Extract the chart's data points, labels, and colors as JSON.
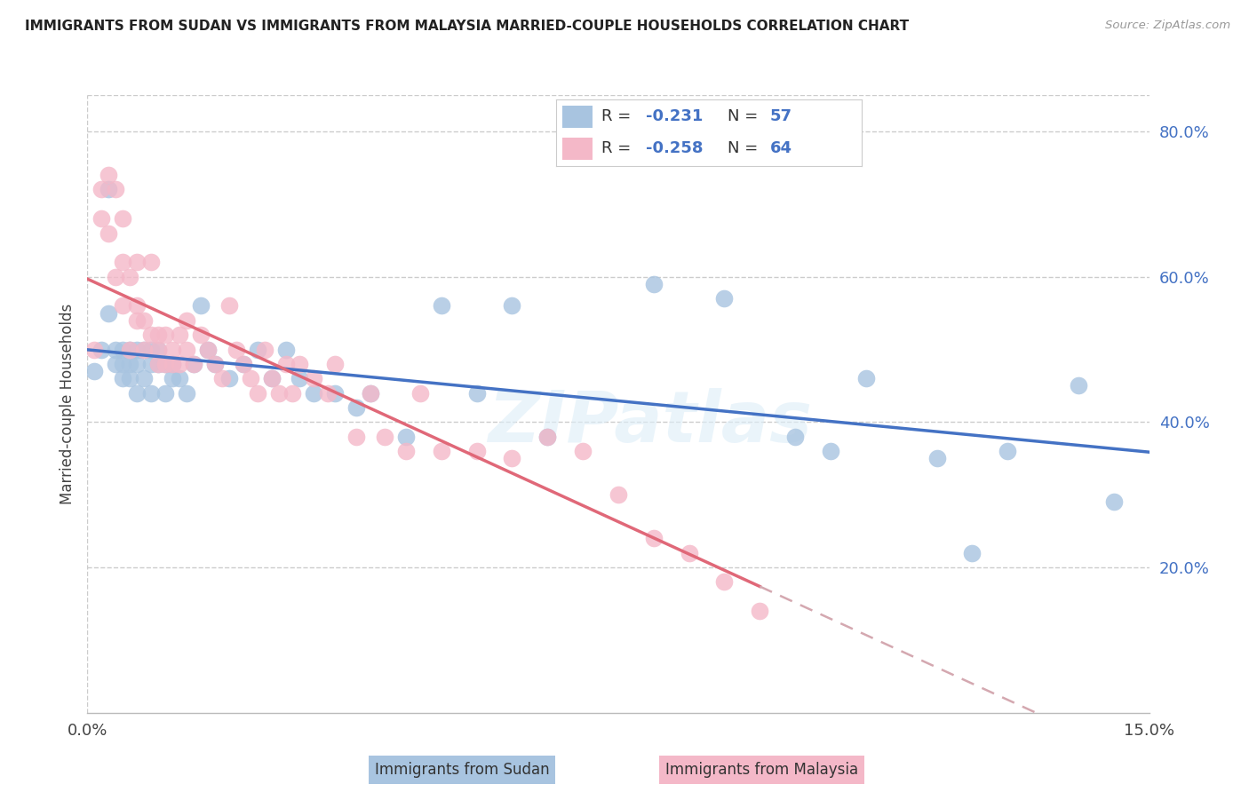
{
  "title": "IMMIGRANTS FROM SUDAN VS IMMIGRANTS FROM MALAYSIA MARRIED-COUPLE HOUSEHOLDS CORRELATION CHART",
  "source": "Source: ZipAtlas.com",
  "ylabel": "Married-couple Households",
  "xlim": [
    0.0,
    0.15
  ],
  "ylim": [
    0.0,
    0.85
  ],
  "ytick_labels": [
    "20.0%",
    "40.0%",
    "60.0%",
    "80.0%"
  ],
  "ytick_positions": [
    0.2,
    0.4,
    0.6,
    0.8
  ],
  "legend_r_sudan": "-0.231",
  "legend_n_sudan": "57",
  "legend_r_malaysia": "-0.258",
  "legend_n_malaysia": "64",
  "color_sudan": "#a8c4e0",
  "color_malaysia": "#f4b8c8",
  "line_color_sudan": "#4472c4",
  "line_color_malaysia": "#e06878",
  "line_color_malaysia_dash": "#d4a8b0",
  "background_color": "#ffffff",
  "grid_color": "#cccccc",
  "watermark": "ZIPatlas",
  "sudan_x": [
    0.001,
    0.002,
    0.003,
    0.003,
    0.004,
    0.004,
    0.005,
    0.005,
    0.005,
    0.006,
    0.006,
    0.006,
    0.007,
    0.007,
    0.007,
    0.008,
    0.008,
    0.009,
    0.009,
    0.009,
    0.01,
    0.01,
    0.011,
    0.011,
    0.012,
    0.012,
    0.013,
    0.014,
    0.015,
    0.016,
    0.017,
    0.018,
    0.02,
    0.022,
    0.024,
    0.026,
    0.028,
    0.03,
    0.032,
    0.035,
    0.038,
    0.04,
    0.045,
    0.05,
    0.055,
    0.06,
    0.065,
    0.08,
    0.09,
    0.1,
    0.105,
    0.11,
    0.12,
    0.125,
    0.13,
    0.14,
    0.145
  ],
  "sudan_y": [
    0.47,
    0.5,
    0.55,
    0.72,
    0.5,
    0.48,
    0.5,
    0.46,
    0.48,
    0.5,
    0.48,
    0.46,
    0.5,
    0.48,
    0.44,
    0.5,
    0.46,
    0.48,
    0.44,
    0.5,
    0.48,
    0.5,
    0.48,
    0.44,
    0.48,
    0.46,
    0.46,
    0.44,
    0.48,
    0.56,
    0.5,
    0.48,
    0.46,
    0.48,
    0.5,
    0.46,
    0.5,
    0.46,
    0.44,
    0.44,
    0.42,
    0.44,
    0.38,
    0.56,
    0.44,
    0.56,
    0.38,
    0.59,
    0.57,
    0.38,
    0.36,
    0.46,
    0.35,
    0.22,
    0.36,
    0.45,
    0.29
  ],
  "malaysia_x": [
    0.001,
    0.002,
    0.002,
    0.003,
    0.003,
    0.004,
    0.004,
    0.005,
    0.005,
    0.005,
    0.006,
    0.006,
    0.007,
    0.007,
    0.007,
    0.008,
    0.008,
    0.009,
    0.009,
    0.01,
    0.01,
    0.01,
    0.011,
    0.011,
    0.012,
    0.012,
    0.013,
    0.013,
    0.014,
    0.014,
    0.015,
    0.016,
    0.017,
    0.018,
    0.019,
    0.02,
    0.021,
    0.022,
    0.023,
    0.024,
    0.025,
    0.026,
    0.027,
    0.028,
    0.029,
    0.03,
    0.032,
    0.034,
    0.035,
    0.038,
    0.04,
    0.042,
    0.045,
    0.047,
    0.05,
    0.055,
    0.06,
    0.065,
    0.07,
    0.075,
    0.08,
    0.085,
    0.09,
    0.095
  ],
  "malaysia_y": [
    0.5,
    0.72,
    0.68,
    0.74,
    0.66,
    0.72,
    0.6,
    0.62,
    0.68,
    0.56,
    0.6,
    0.5,
    0.54,
    0.62,
    0.56,
    0.54,
    0.5,
    0.62,
    0.52,
    0.52,
    0.5,
    0.48,
    0.52,
    0.48,
    0.5,
    0.48,
    0.52,
    0.48,
    0.5,
    0.54,
    0.48,
    0.52,
    0.5,
    0.48,
    0.46,
    0.56,
    0.5,
    0.48,
    0.46,
    0.44,
    0.5,
    0.46,
    0.44,
    0.48,
    0.44,
    0.48,
    0.46,
    0.44,
    0.48,
    0.38,
    0.44,
    0.38,
    0.36,
    0.44,
    0.36,
    0.36,
    0.35,
    0.38,
    0.36,
    0.3,
    0.24,
    0.22,
    0.18,
    0.14
  ]
}
